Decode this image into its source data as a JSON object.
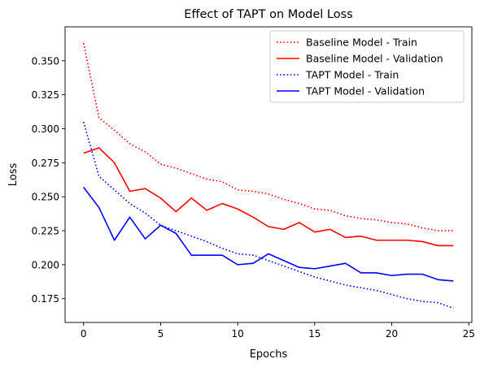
{
  "chart_data": {
    "type": "line",
    "title": "Effect of TAPT on Model Loss",
    "xlabel": "Epochs",
    "ylabel": "Loss",
    "xlim": [
      -1.2,
      25.2
    ],
    "ylim": [
      0.1575,
      0.375
    ],
    "xticks": [
      0,
      5,
      10,
      15,
      20,
      25
    ],
    "yticks": [
      0.175,
      0.2,
      0.225,
      0.25,
      0.275,
      0.3,
      0.325,
      0.35
    ],
    "ytick_labels": [
      "0.175",
      "0.200",
      "0.225",
      "0.250",
      "0.275",
      "0.300",
      "0.325",
      "0.350"
    ],
    "grid": false,
    "legend_position": "top-right",
    "x": [
      0,
      1,
      2,
      3,
      4,
      5,
      6,
      7,
      8,
      9,
      10,
      11,
      12,
      13,
      14,
      15,
      16,
      17,
      18,
      19,
      20,
      21,
      22,
      23,
      24
    ],
    "series": [
      {
        "name": "Baseline Model - Train",
        "color": "#ff0000",
        "style": "dotted",
        "values": [
          0.363,
          0.308,
          0.299,
          0.289,
          0.283,
          0.274,
          0.271,
          0.267,
          0.263,
          0.261,
          0.255,
          0.254,
          0.252,
          0.248,
          0.245,
          0.241,
          0.24,
          0.236,
          0.234,
          0.233,
          0.231,
          0.23,
          0.227,
          0.225,
          0.225
        ]
      },
      {
        "name": "Baseline Model - Validation",
        "color": "#ff0000",
        "style": "solid",
        "values": [
          0.282,
          0.286,
          0.275,
          0.254,
          0.256,
          0.249,
          0.239,
          0.249,
          0.24,
          0.245,
          0.241,
          0.235,
          0.228,
          0.226,
          0.231,
          0.224,
          0.226,
          0.22,
          0.221,
          0.218,
          0.218,
          0.218,
          0.217,
          0.214,
          0.214
        ]
      },
      {
        "name": "TAPT Model - Train",
        "color": "#0000ff",
        "style": "dotted",
        "values": [
          0.305,
          0.265,
          0.255,
          0.245,
          0.238,
          0.229,
          0.225,
          0.221,
          0.217,
          0.212,
          0.208,
          0.207,
          0.203,
          0.199,
          0.195,
          0.191,
          0.188,
          0.185,
          0.183,
          0.181,
          0.178,
          0.175,
          0.173,
          0.172,
          0.168
        ]
      },
      {
        "name": "TAPT Model - Validation",
        "color": "#0000ff",
        "style": "solid",
        "values": [
          0.257,
          0.242,
          0.218,
          0.235,
          0.219,
          0.229,
          0.223,
          0.207,
          0.207,
          0.207,
          0.2,
          0.201,
          0.208,
          0.203,
          0.198,
          0.197,
          0.199,
          0.201,
          0.194,
          0.194,
          0.192,
          0.193,
          0.193,
          0.189,
          0.188
        ]
      }
    ]
  }
}
